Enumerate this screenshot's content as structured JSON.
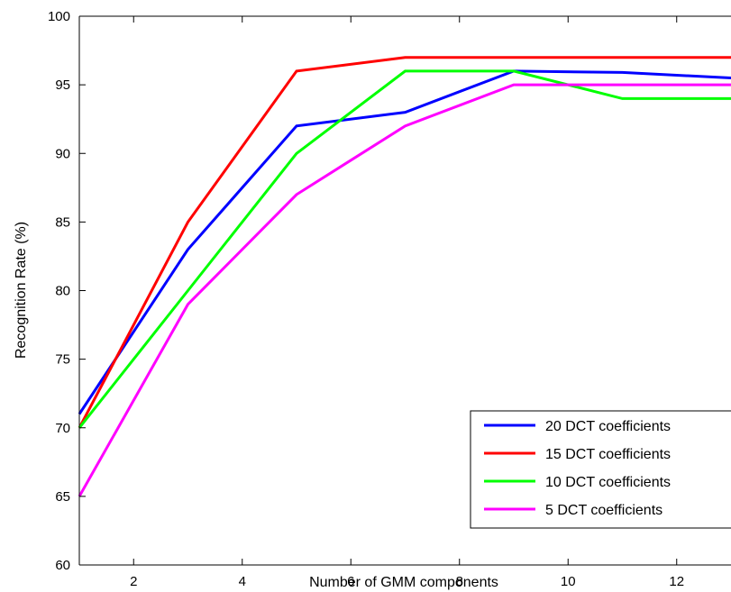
{
  "chart_data": {
    "type": "line",
    "title": "",
    "xlabel": "Number of GMM components",
    "ylabel": "Recognition Rate (%)",
    "xlim": [
      1,
      13
    ],
    "ylim": [
      60,
      100
    ],
    "x": [
      1,
      3,
      5,
      7,
      9,
      11,
      13
    ],
    "xticks": [
      2,
      4,
      6,
      8,
      10,
      12
    ],
    "yticks": [
      60,
      65,
      70,
      75,
      80,
      85,
      90,
      95,
      100
    ],
    "grid": false,
    "legend_position": "bottom-right",
    "series": [
      {
        "name": "20 DCT coefficients",
        "color": "#0000ff",
        "values": [
          71,
          83,
          92,
          93,
          96,
          95.9,
          95.5
        ]
      },
      {
        "name": "15 DCT coefficients",
        "color": "#ff0000",
        "values": [
          70,
          85,
          96,
          97,
          97,
          97,
          97
        ]
      },
      {
        "name": "10 DCT coefficients",
        "color": "#00ff00",
        "values": [
          70,
          80,
          90,
          96,
          96,
          94,
          94
        ]
      },
      {
        "name": "5 DCT coefficients",
        "color": "#ff00ff",
        "values": [
          65,
          79,
          87,
          92,
          95,
          95,
          95
        ]
      }
    ]
  }
}
